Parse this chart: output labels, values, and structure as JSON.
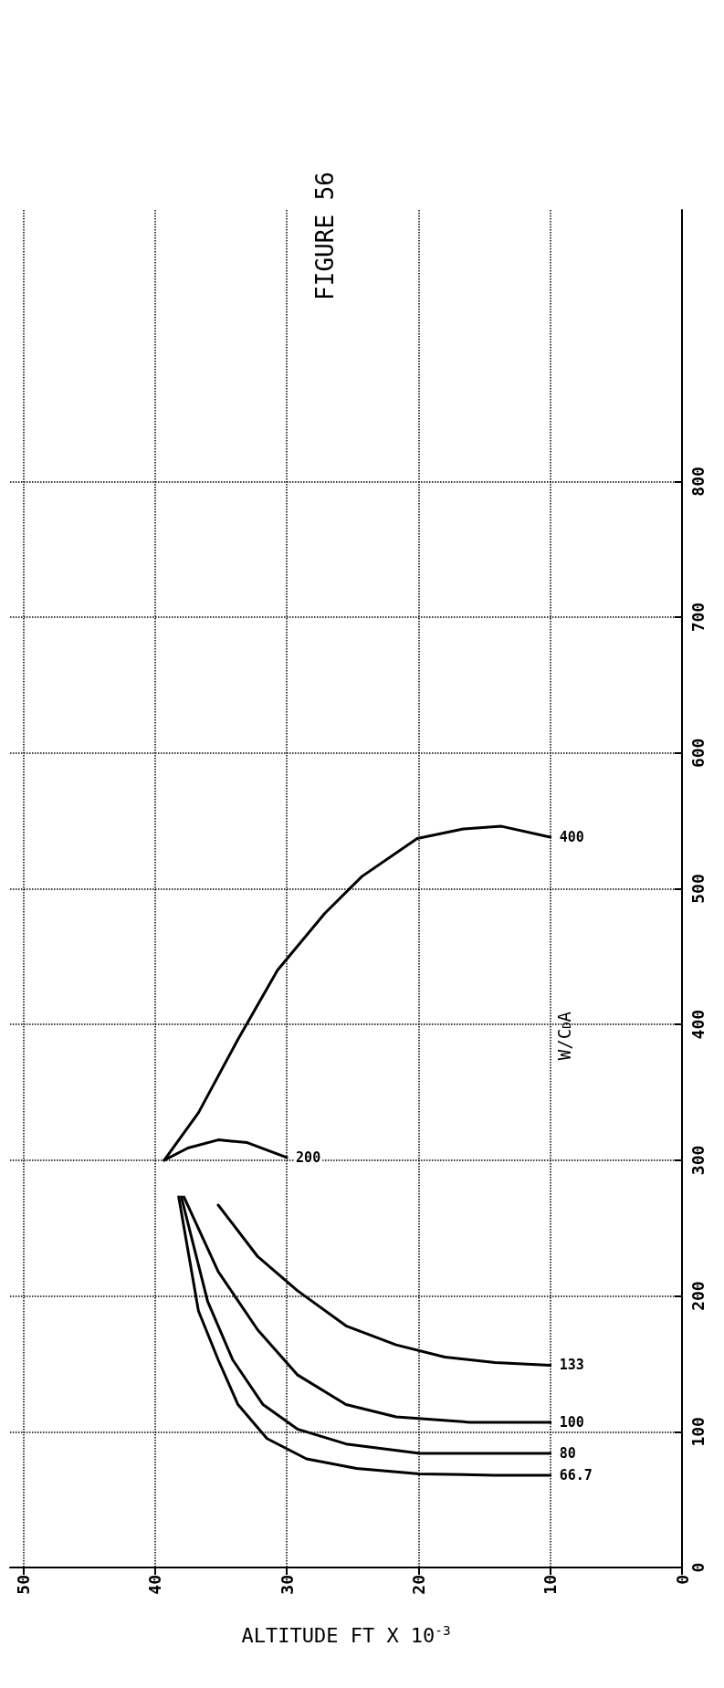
{
  "chart_data": {
    "type": "line",
    "title": "FIGURE 56",
    "xlabel": "ALTITUDE FT X 10$^{-3}$",
    "legend_title": "W/C$_{D}$A",
    "xlim": [
      51,
      0
    ],
    "xticks": [
      50,
      40,
      30,
      20,
      10,
      0
    ],
    "ylim": [
      0,
      1000
    ],
    "yticks": [
      0,
      100,
      200,
      300,
      400,
      500,
      600,
      700,
      800
    ],
    "grid": true,
    "legend": false,
    "marker": "none",
    "line_style": "solid",
    "series": [
      {
        "name": "66.7",
        "color": "#000000",
        "x": [
          38.2,
          36.7,
          35.2,
          33.7,
          31.5,
          28.5,
          24.7,
          19.9,
          14.2,
          10
        ],
        "values": [
          273,
          189,
          153,
          120,
          95,
          80,
          73,
          69,
          68,
          68
        ]
      },
      {
        "name": "80",
        "color": "#000000",
        "x": [
          38,
          36,
          34.1,
          31.8,
          29.2,
          25.5,
          19.9,
          14.2,
          10
        ],
        "values": [
          273,
          196,
          153,
          120,
          102,
          91,
          84,
          84,
          84
        ]
      },
      {
        "name": "100",
        "color": "#000000",
        "x": [
          37.8,
          35.2,
          32.2,
          29.2,
          25.5,
          21.7,
          16.1,
          10
        ],
        "values": [
          273,
          218,
          175,
          142,
          120,
          111,
          107,
          107
        ]
      },
      {
        "name": "133",
        "color": "#000000",
        "x": [
          35.2,
          32.2,
          29.2,
          25.5,
          21.7,
          18,
          14.2,
          10
        ],
        "values": [
          267,
          229,
          204,
          178,
          164,
          155,
          151,
          149
        ]
      },
      {
        "name": "200",
        "color": "#000000",
        "x": [
          39.3,
          37.5,
          35.2,
          33,
          30
        ],
        "values": [
          300,
          309,
          315,
          313,
          302
        ]
      },
      {
        "name": "400",
        "color": "#000000",
        "x": [
          39.3,
          36.7,
          33.7,
          30.7,
          27.1,
          24.3,
          20.1,
          16.6,
          13.7,
          10
        ],
        "values": [
          300,
          335,
          389,
          440,
          482,
          509,
          537,
          544,
          546,
          538
        ]
      }
    ]
  }
}
